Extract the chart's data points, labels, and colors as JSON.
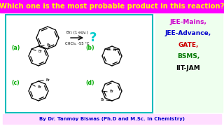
{
  "title": "Which one is the most probable product in this reaction?",
  "title_color": "#FFFF00",
  "title_bg": "#FF00FF",
  "bg_color": "#FFFFFF",
  "reaction_text1": "Br₂ (1 eqv.)",
  "reaction_text2": "CHCl₃, -55 °C",
  "question_mark": "?",
  "question_mark_color": "#00CCCC",
  "labels": [
    "(a)",
    "(b)",
    "(c)",
    "(d)"
  ],
  "label_color": "#00AA00",
  "box_color": "#00BBBB",
  "jee_mains": "JEE-Mains,",
  "jee_advance": "JEE-Advance,",
  "gate": "GATE,",
  "bsms": "BSMS,",
  "iitjam": "IIT-JAM",
  "jee_mains_color": "#CC00CC",
  "jee_advance_color": "#0000CC",
  "gate_color": "#CC0000",
  "bsms_color": "#007700",
  "iitjam_color": "#000000",
  "sidebar_bg": "#EEFFEE",
  "footer_text": "By Dr. Tanmoy Biswas (Ph.D and M.Sc. in Chemistry)",
  "footer_bg": "#FFDDFF",
  "footer_text_color": "#0000CC"
}
